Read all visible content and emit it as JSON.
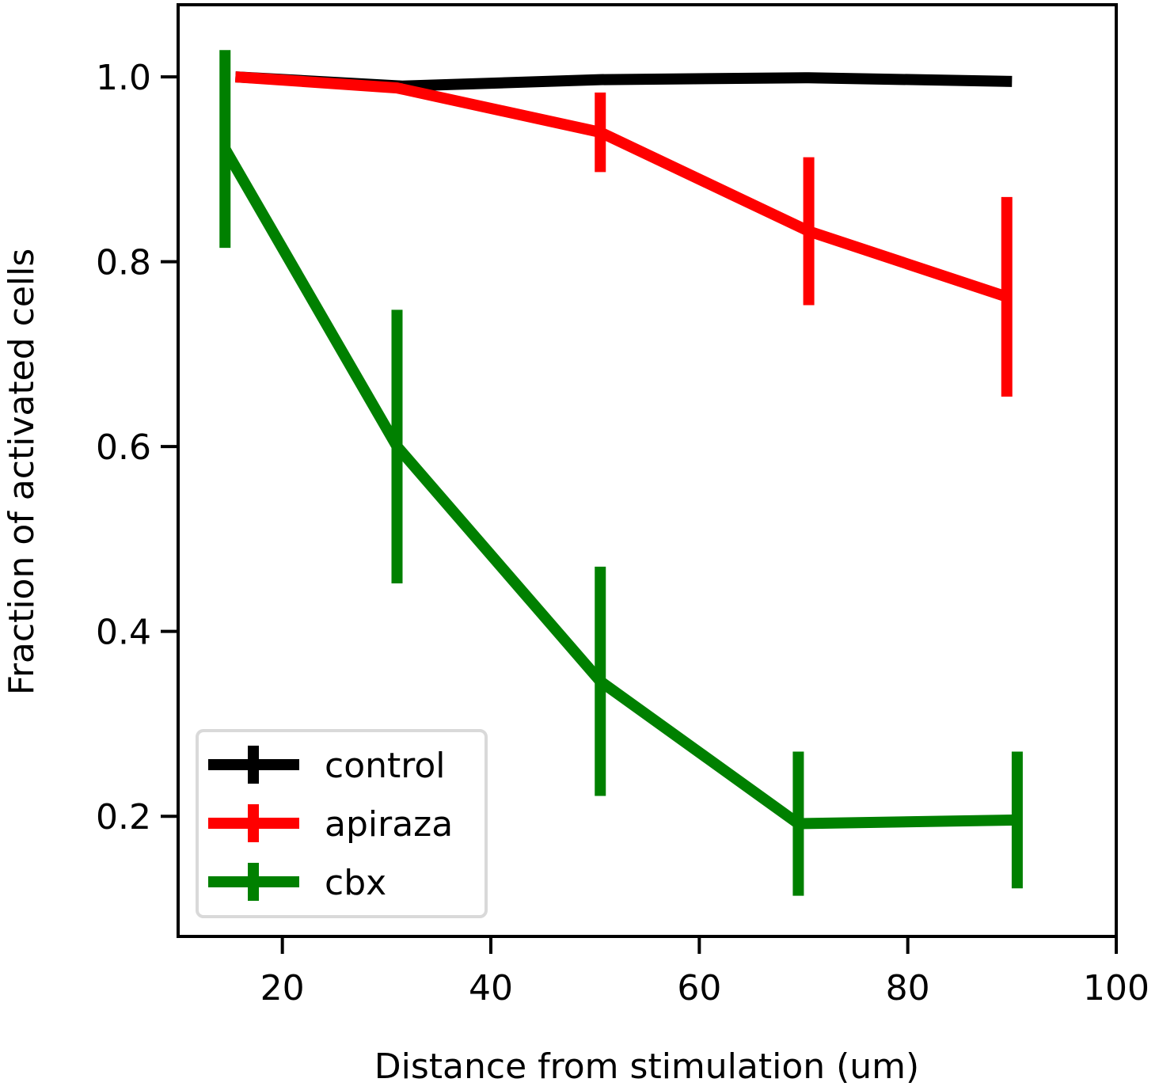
{
  "chart_data": {
    "type": "line",
    "xlabel": "Distance from stimulation (um)",
    "ylabel": "Fraction of activated cells",
    "xlim": [
      10,
      100
    ],
    "ylim": [
      0.07,
      1.078
    ],
    "xticks": [
      20,
      40,
      60,
      80,
      100
    ],
    "yticks": [
      0.2,
      0.4,
      0.6,
      0.8,
      1.0
    ],
    "xtick_labels": [
      "20",
      "40",
      "60",
      "80",
      "100"
    ],
    "ytick_labels": [
      "0.2",
      "0.4",
      "0.6",
      "0.8",
      "1.0"
    ],
    "grid": false,
    "legend_position": "bottom-left",
    "series": [
      {
        "name": "control",
        "color": "#000000",
        "x": [
          15.5,
          31.5,
          50.5,
          70.5,
          90.0
        ],
        "y": [
          1.0,
          0.99,
          0.997,
          0.999,
          0.995
        ],
        "err": [
          0.0,
          0.0,
          0.0,
          0.0,
          0.0
        ]
      },
      {
        "name": "apiraza",
        "color": "#ff0000",
        "x": [
          15.5,
          31.0,
          50.5,
          70.5,
          89.5
        ],
        "y": [
          1.0,
          0.988,
          0.94,
          0.833,
          0.762
        ],
        "err": [
          0.0,
          0.005,
          0.043,
          0.08,
          0.108
        ]
      },
      {
        "name": "cbx",
        "color": "#008000",
        "x": [
          14.5,
          31.0,
          50.5,
          69.5,
          90.5
        ],
        "y": [
          0.922,
          0.6,
          0.346,
          0.192,
          0.196
        ],
        "err": [
          0.107,
          0.148,
          0.124,
          0.078,
          0.074
        ]
      }
    ]
  }
}
